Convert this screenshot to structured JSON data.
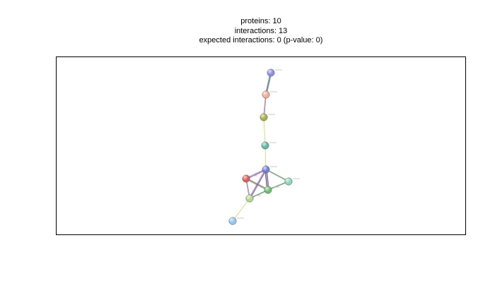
{
  "header": {
    "proteins": "proteins: 10",
    "interactions": "interactions: 13",
    "expected": "expected interactions: 0 (p-value: 0)"
  },
  "network": {
    "nodes": [
      {
        "id": "n1",
        "color": "#8c8ce8"
      },
      {
        "id": "n2",
        "color": "#f0b090"
      },
      {
        "id": "n3",
        "color": "#a8b040"
      },
      {
        "id": "n4",
        "color": "#5fb8a6"
      },
      {
        "id": "n5",
        "color": "#6f7fd6"
      },
      {
        "id": "n6",
        "color": "#e05a5a"
      },
      {
        "id": "n7",
        "color": "#6cc070"
      },
      {
        "id": "n8",
        "color": "#88d8b8"
      },
      {
        "id": "n9",
        "color": "#b0d890"
      },
      {
        "id": "n10",
        "color": "#8cc8f0"
      }
    ],
    "edges": [
      {
        "from": "n1",
        "to": "n2",
        "colors": [
          "#2a9a2a",
          "#4040d0",
          "#888888"
        ]
      },
      {
        "from": "n2",
        "to": "n3",
        "colors": [
          "#c050a0",
          "#888888"
        ]
      },
      {
        "from": "n3",
        "to": "n4",
        "colors": [
          "#c8d040"
        ]
      },
      {
        "from": "n4",
        "to": "n5",
        "colors": [
          "#c8d040"
        ]
      },
      {
        "from": "n5",
        "to": "n6",
        "colors": [
          "#4040d0",
          "#c050a0",
          "#888888"
        ]
      },
      {
        "from": "n5",
        "to": "n7",
        "colors": [
          "#4040d0",
          "#c050a0",
          "#888888",
          "#333333"
        ]
      },
      {
        "from": "n5",
        "to": "n8",
        "colors": [
          "#2a9a2a",
          "#888888"
        ]
      },
      {
        "from": "n5",
        "to": "n9",
        "colors": [
          "#4040d0",
          "#c050a0",
          "#888888"
        ]
      },
      {
        "from": "n6",
        "to": "n7",
        "colors": [
          "#c050a0",
          "#2a9a2a",
          "#888888"
        ]
      },
      {
        "from": "n6",
        "to": "n9",
        "colors": [
          "#c050a0",
          "#888888"
        ]
      },
      {
        "from": "n7",
        "to": "n8",
        "colors": [
          "#2a9a2a",
          "#888888"
        ]
      },
      {
        "from": "n7",
        "to": "n9",
        "colors": [
          "#2a9a2a",
          "#888888"
        ]
      },
      {
        "from": "n9",
        "to": "n10",
        "colors": [
          "#c8d040"
        ]
      }
    ]
  }
}
